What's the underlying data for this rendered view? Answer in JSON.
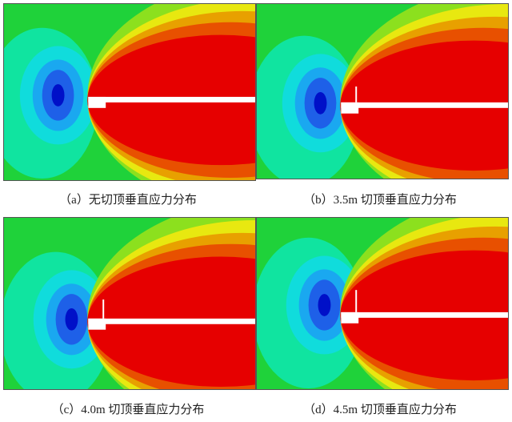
{
  "figure": {
    "panels": [
      {
        "id": "a",
        "caption": "（a）无切顶垂直应力分布",
        "roof_cut": false
      },
      {
        "id": "b",
        "caption": "（b）3.5m 切顶垂直应力分布",
        "roof_cut": true
      },
      {
        "id": "c",
        "caption": "（c）4.0m 切顶垂直应力分布",
        "roof_cut": true
      },
      {
        "id": "d",
        "caption": "（d）4.5m 切顶垂直应力分布",
        "roof_cut": true
      }
    ],
    "colors": {
      "low": "#0010c8",
      "blue": "#1e60e8",
      "light_blue": "#1aa8f0",
      "cyan": "#10dcdc",
      "teal": "#10e4a0",
      "green": "#1fd23a",
      "light_green": "#8ce01e",
      "yellow": "#e8e810",
      "orange": "#e8a000",
      "dark_orange": "#e85000",
      "high": "#e60000",
      "opening": "#ffffff"
    }
  }
}
